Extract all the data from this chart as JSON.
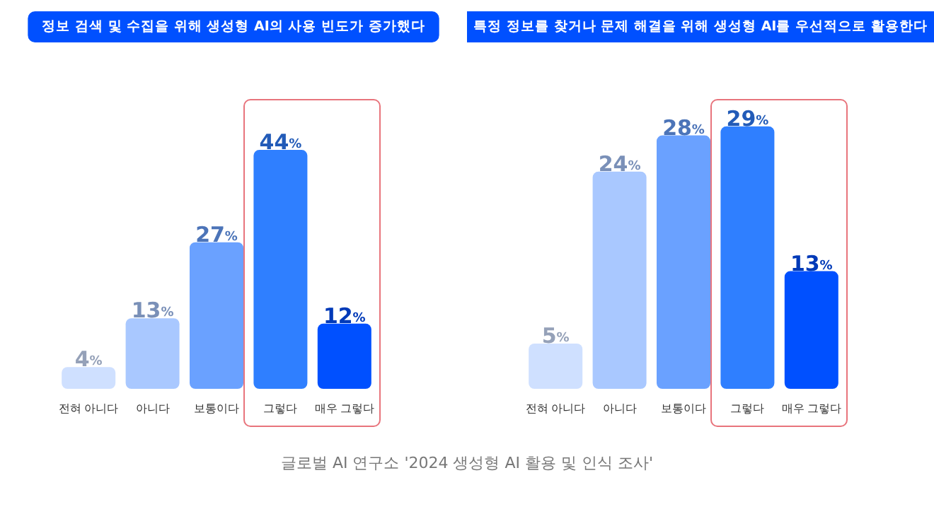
{
  "chart_data": [
    {
      "type": "bar",
      "title": "정보 검색 및 수집을 위해 생성형 AI의 사용 빈도가 증가했다",
      "categories": [
        "전혀 아니다",
        "아니다",
        "보통이다",
        "그렇다",
        "매우 그렇다"
      ],
      "values": [
        4,
        13,
        27,
        44,
        12
      ],
      "value_labels": [
        "4%",
        "13%",
        "27%",
        "44%",
        "12%"
      ],
      "colors": [
        "#cfe0ff",
        "#a9c8ff",
        "#6aa1ff",
        "#2f7fff",
        "#0050ff"
      ],
      "annotations": [
        "글로벌 AI 연구소 '2024 생성형 AI 활용 및 인식 조사'"
      ]
    },
    {
      "type": "bar",
      "title": "특정 정보를 찾거나 문제 해결을 위해 생성형 AI를 우선적으로 활용한다",
      "categories": [
        "전혀 아니다",
        "아니다",
        "보통이다",
        "그렇다",
        "매우 그렇다"
      ],
      "values": [
        5,
        24,
        28,
        29,
        13
      ],
      "value_labels": [
        "5%",
        "24%",
        "28%",
        "29%",
        "13%"
      ],
      "colors": [
        "#cfe0ff",
        "#a9c8ff",
        "#6aa1ff",
        "#2f7fff",
        "#0050ff"
      ]
    }
  ]
}
